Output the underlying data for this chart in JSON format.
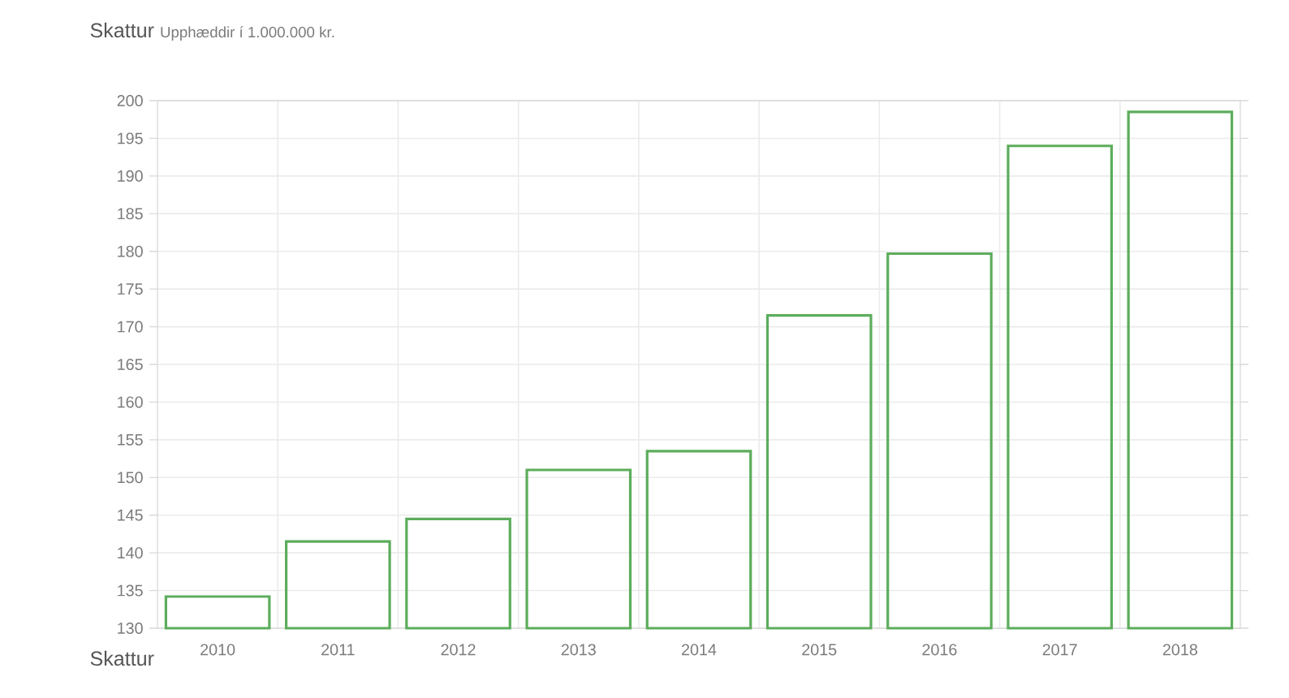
{
  "chart_data": {
    "type": "bar",
    "title": "Skattur",
    "subtitle": "Upphæddir í 1.000.000 kr.",
    "categories": [
      "2010",
      "2011",
      "2012",
      "2013",
      "2014",
      "2015",
      "2016",
      "2017",
      "2018"
    ],
    "values": [
      134.2,
      141.5,
      144.5,
      151,
      153.5,
      171.5,
      179.7,
      194,
      198.5
    ],
    "color": "#5cad5c",
    "ylim": [
      130,
      200
    ],
    "yticks": [
      130,
      135,
      140,
      145,
      150,
      155,
      160,
      165,
      170,
      175,
      180,
      185,
      190,
      195,
      200
    ],
    "grid": true,
    "annotations": [
      "Skattur"
    ]
  }
}
